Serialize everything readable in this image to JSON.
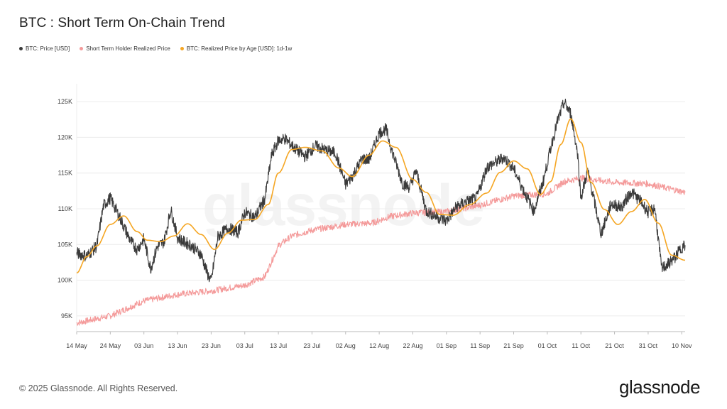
{
  "page": {
    "title": "BTC : Short Term On-Chain Trend",
    "copyright": "© 2025 Glassnode. All Rights Reserved.",
    "brand": "glassnode",
    "watermark": "glassnode"
  },
  "legend": [
    {
      "label": "BTC: Price [USD]",
      "color": "#3a3a3a"
    },
    {
      "label": "Short Term Holder Realized Price",
      "color": "#f49a9a"
    },
    {
      "label": "BTC: Realized Price by Age [USD]: 1d-1w",
      "color": "#f5a623"
    }
  ],
  "chart_data": {
    "type": "line",
    "x_tick_labels": [
      "14 May",
      "24 May",
      "03 Jun",
      "13 Jun",
      "23 Jun",
      "03 Jul",
      "13 Jul",
      "23 Jul",
      "02 Aug",
      "12 Aug",
      "22 Aug",
      "01 Sep",
      "11 Sep",
      "21 Sep",
      "01 Oct",
      "11 Oct",
      "21 Oct",
      "31 Oct",
      "10 Nov"
    ],
    "y_tick_labels": [
      "95K",
      "100K",
      "105K",
      "110K",
      "115K",
      "120K",
      "125K"
    ],
    "y_ticks": [
      95000,
      100000,
      105000,
      110000,
      115000,
      120000,
      125000
    ],
    "ylim": [
      92800,
      127500
    ],
    "x_start": "2025-05-14",
    "x_end": "2025-11-11",
    "grid": true,
    "legend_position": "top-left",
    "series": [
      {
        "name": "BTC: Price [USD]",
        "color": "#3a3a3a",
        "dates": [
          "2025-05-14",
          "2025-05-17",
          "2025-05-20",
          "2025-05-22",
          "2025-05-24",
          "2025-05-27",
          "2025-05-30",
          "2025-06-01",
          "2025-06-03",
          "2025-06-05",
          "2025-06-07",
          "2025-06-09",
          "2025-06-11",
          "2025-06-13",
          "2025-06-15",
          "2025-06-17",
          "2025-06-20",
          "2025-06-22",
          "2025-06-23",
          "2025-06-25",
          "2025-06-28",
          "2025-07-01",
          "2025-07-03",
          "2025-07-06",
          "2025-07-09",
          "2025-07-11",
          "2025-07-13",
          "2025-07-15",
          "2025-07-18",
          "2025-07-21",
          "2025-07-24",
          "2025-07-27",
          "2025-07-30",
          "2025-08-02",
          "2025-08-04",
          "2025-08-07",
          "2025-08-09",
          "2025-08-12",
          "2025-08-14",
          "2025-08-16",
          "2025-08-19",
          "2025-08-21",
          "2025-08-23",
          "2025-08-26",
          "2025-08-29",
          "2025-09-01",
          "2025-09-04",
          "2025-09-07",
          "2025-09-10",
          "2025-09-13",
          "2025-09-16",
          "2025-09-18",
          "2025-09-21",
          "2025-09-24",
          "2025-09-27",
          "2025-09-30",
          "2025-10-02",
          "2025-10-04",
          "2025-10-06",
          "2025-10-08",
          "2025-10-10",
          "2025-10-11",
          "2025-10-13",
          "2025-10-15",
          "2025-10-17",
          "2025-10-20",
          "2025-10-23",
          "2025-10-26",
          "2025-10-29",
          "2025-10-31",
          "2025-11-02",
          "2025-11-04",
          "2025-11-06",
          "2025-11-08",
          "2025-11-10",
          "2025-11-11"
        ],
        "values": [
          103800,
          103400,
          104800,
          110500,
          111500,
          108600,
          105500,
          104300,
          105800,
          101600,
          104700,
          105400,
          109900,
          106000,
          105300,
          104900,
          103600,
          100800,
          99800,
          106100,
          107300,
          106700,
          109500,
          108800,
          111400,
          117500,
          119600,
          119800,
          118400,
          117300,
          118800,
          118200,
          117800,
          113400,
          114600,
          117000,
          116900,
          120600,
          121200,
          117800,
          113500,
          113000,
          115300,
          109700,
          108900,
          108300,
          110300,
          111000,
          111500,
          115800,
          116600,
          117200,
          115600,
          112500,
          109700,
          114200,
          118500,
          122200,
          124900,
          123300,
          117800,
          111500,
          115300,
          111000,
          106500,
          110700,
          110200,
          112400,
          110900,
          109500,
          110100,
          101600,
          102300,
          103200,
          104600,
          104900
        ]
      },
      {
        "name": "Short Term Holder Realized Price",
        "color": "#f49a9a",
        "dates": [
          "2025-05-14",
          "2025-05-24",
          "2025-06-03",
          "2025-06-13",
          "2025-06-23",
          "2025-07-03",
          "2025-07-09",
          "2025-07-13",
          "2025-07-17",
          "2025-07-23",
          "2025-08-02",
          "2025-08-10",
          "2025-08-15",
          "2025-08-22",
          "2025-09-01",
          "2025-09-11",
          "2025-09-21",
          "2025-10-01",
          "2025-10-06",
          "2025-10-11",
          "2025-10-21",
          "2025-10-31",
          "2025-11-11"
        ],
        "values": [
          94000,
          95000,
          97100,
          98000,
          98500,
          99300,
          100500,
          104800,
          106200,
          107000,
          107800,
          108000,
          108900,
          109400,
          109600,
          110500,
          111800,
          112100,
          113800,
          114300,
          113700,
          113500,
          112300
        ]
      },
      {
        "name": "BTC: Realized Price by Age [USD]: 1d-1w",
        "color": "#f5a623",
        "dates": [
          "2025-05-14",
          "2025-05-17",
          "2025-05-20",
          "2025-05-24",
          "2025-05-28",
          "2025-06-01",
          "2025-06-04",
          "2025-06-08",
          "2025-06-12",
          "2025-06-16",
          "2025-06-20",
          "2025-06-24",
          "2025-06-28",
          "2025-07-02",
          "2025-07-06",
          "2025-07-10",
          "2025-07-13",
          "2025-07-17",
          "2025-07-21",
          "2025-07-26",
          "2025-07-31",
          "2025-08-04",
          "2025-08-09",
          "2025-08-13",
          "2025-08-17",
          "2025-08-22",
          "2025-08-26",
          "2025-08-30",
          "2025-09-03",
          "2025-09-08",
          "2025-09-13",
          "2025-09-17",
          "2025-09-21",
          "2025-09-25",
          "2025-09-29",
          "2025-10-02",
          "2025-10-05",
          "2025-10-08",
          "2025-10-11",
          "2025-10-14",
          "2025-10-18",
          "2025-10-22",
          "2025-10-26",
          "2025-10-30",
          "2025-11-03",
          "2025-11-07",
          "2025-11-11"
        ],
        "values": [
          101000,
          103300,
          104800,
          107800,
          109000,
          106800,
          105600,
          105400,
          106200,
          107900,
          106400,
          104300,
          106600,
          108400,
          108500,
          110600,
          115000,
          118300,
          118600,
          118100,
          115700,
          114500,
          117500,
          119500,
          118600,
          114100,
          112300,
          109200,
          109100,
          110600,
          112200,
          115100,
          116700,
          115600,
          112000,
          113800,
          119000,
          122600,
          119300,
          113700,
          109900,
          107800,
          109600,
          111300,
          108000,
          103500,
          102800
        ]
      }
    ]
  }
}
